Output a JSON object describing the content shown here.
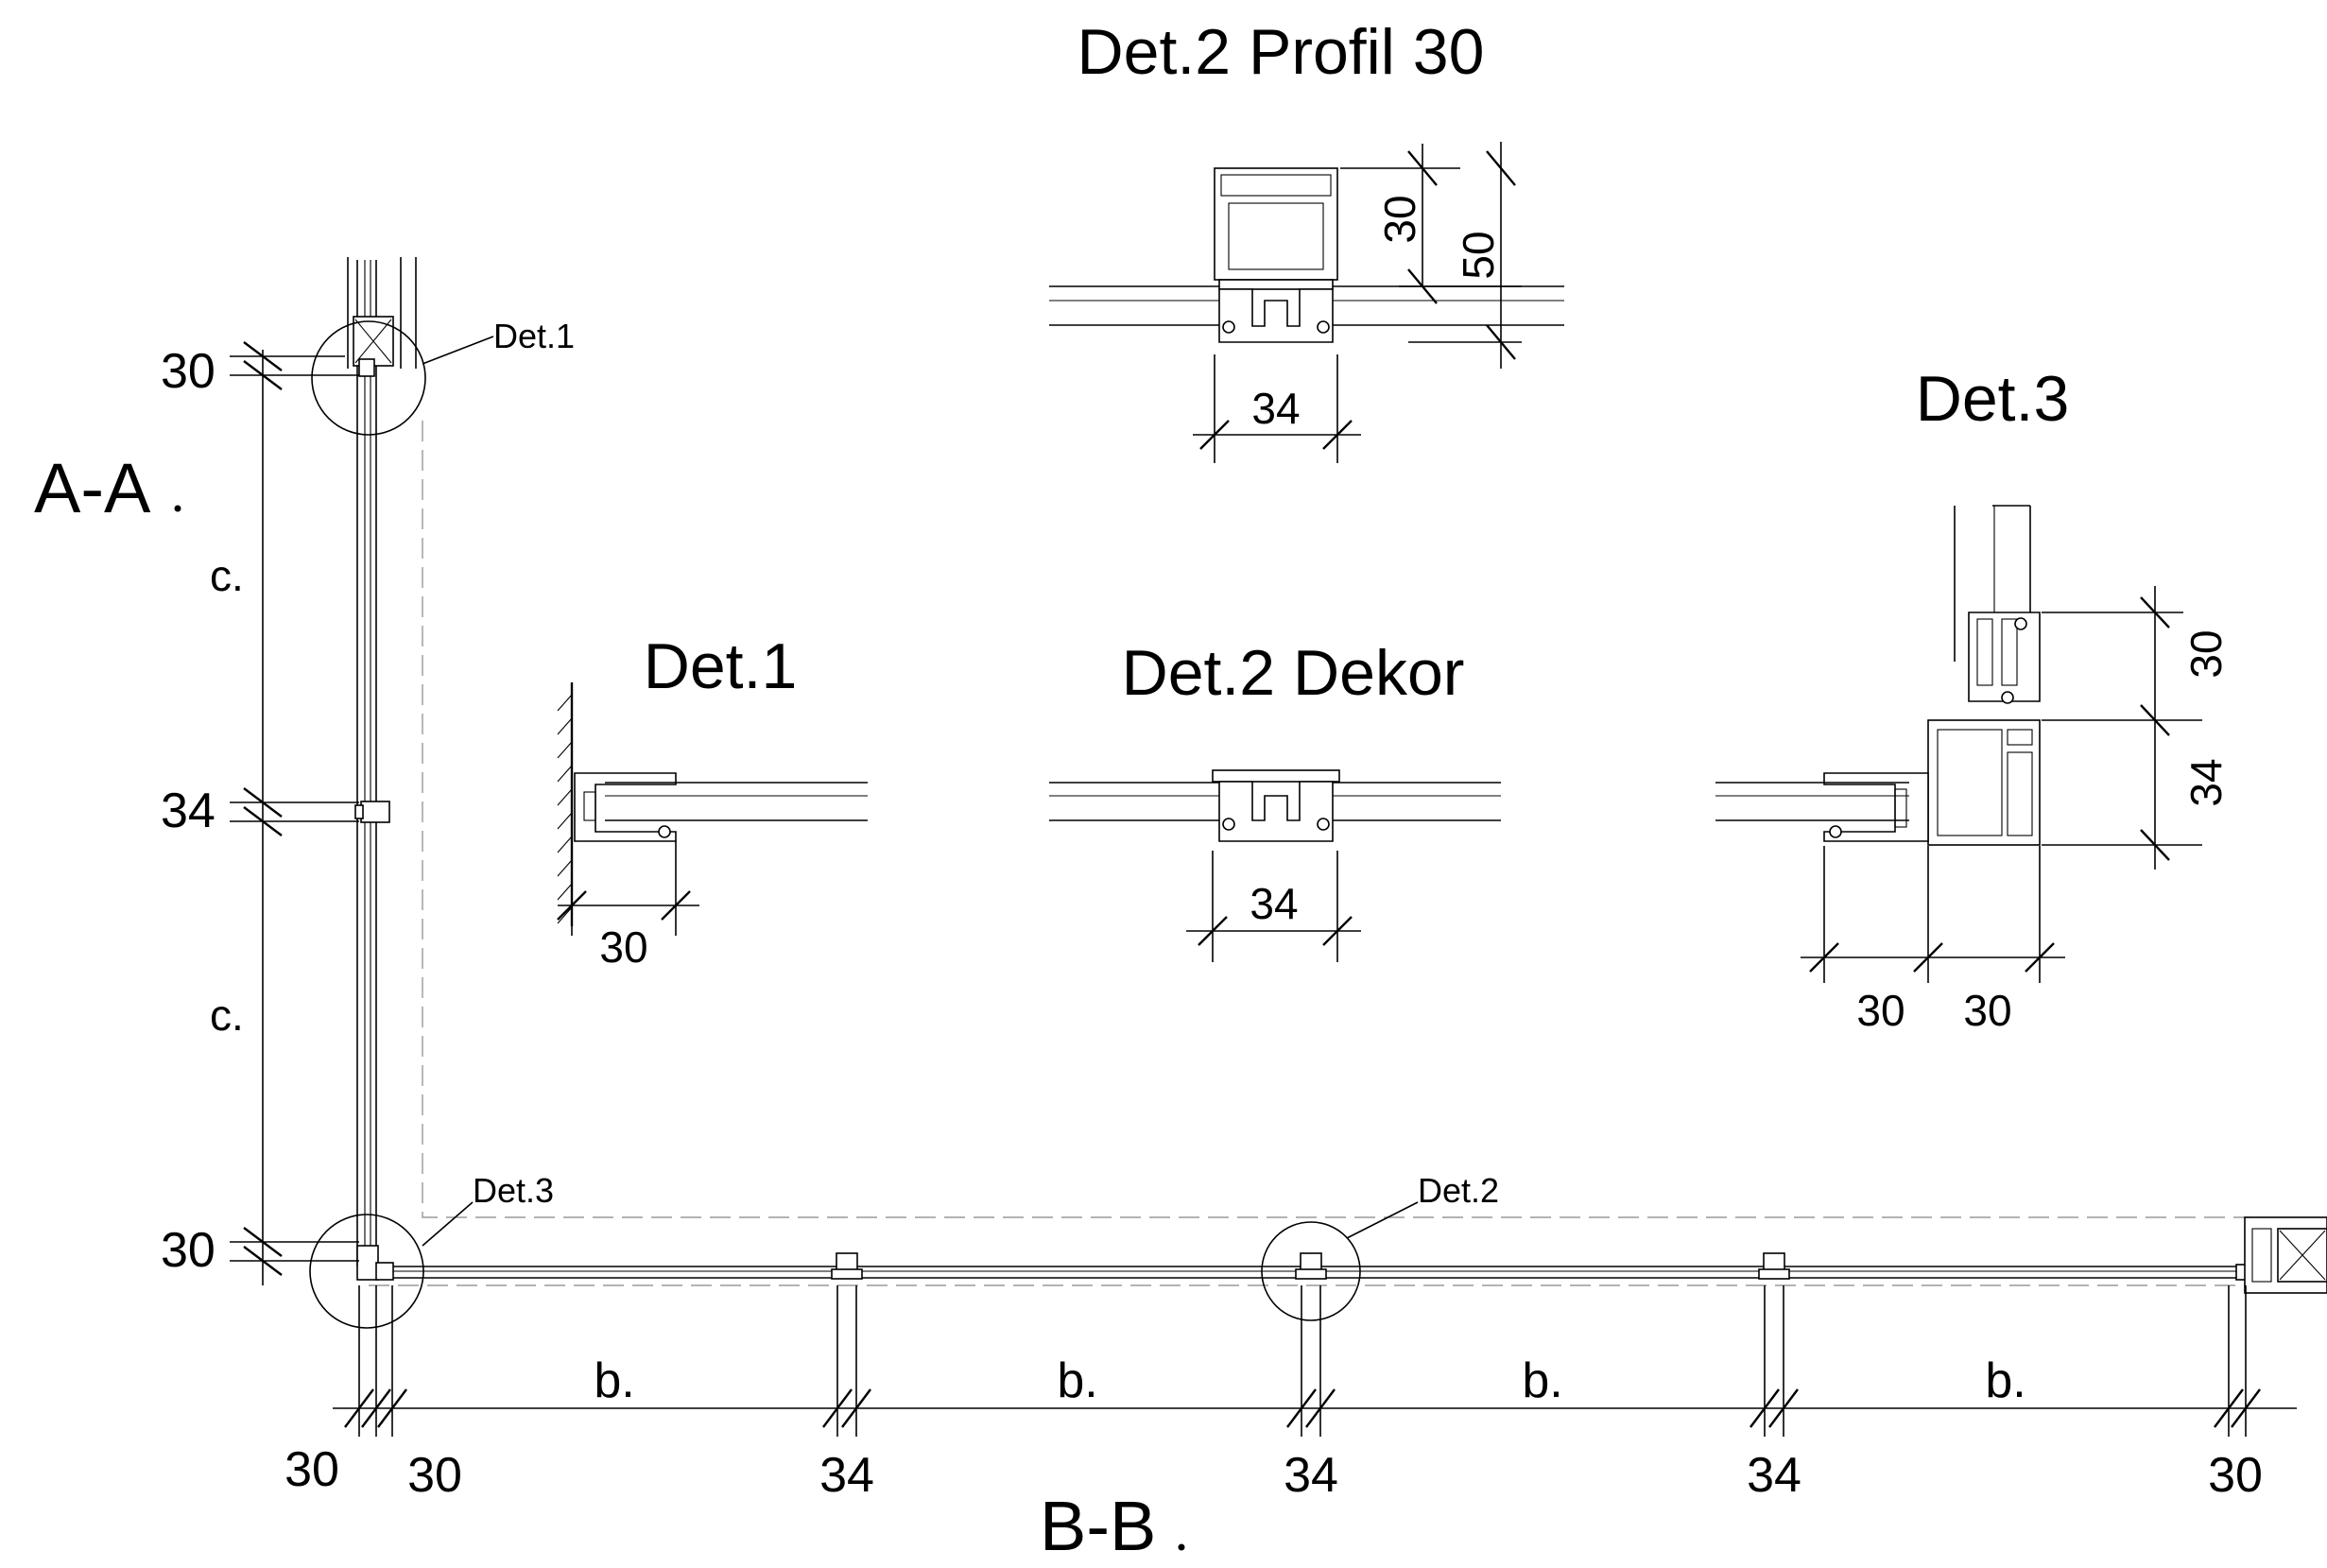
{
  "titles": {
    "det2_profil": "Det.2 Profil 30",
    "det3": "Det.3",
    "det1": "Det.1",
    "det2_dekor": "Det.2 Dekor"
  },
  "sections": {
    "aa": "A-A",
    "bb": "B-B"
  },
  "callouts": {
    "det1": "Det.1",
    "det3": "Det.3",
    "det2": "Det.2"
  },
  "left_dims": {
    "top": "30",
    "c_upper": "c.",
    "mid": "34",
    "c_lower": "c.",
    "bottom": "30"
  },
  "bottom_dims": {
    "b1": "b.",
    "b2": "b.",
    "b3": "b.",
    "b4": "b.",
    "n30a": "30",
    "n30b": "30",
    "n34a": "34",
    "n34b": "34",
    "n34c": "34",
    "n30c": "30"
  },
  "det2_profil_dims": {
    "w": "34",
    "h30": "30",
    "h50": "50"
  },
  "det1_dims": {
    "w": "30"
  },
  "det2_dekor_dims": {
    "w": "34"
  },
  "det3_dims": {
    "w1": "30",
    "w2": "30",
    "h30": "30",
    "h34": "34"
  }
}
